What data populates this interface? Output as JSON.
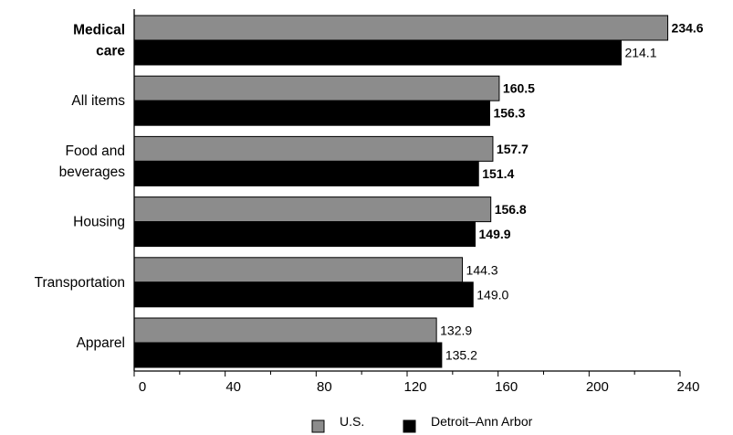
{
  "chart_data": {
    "type": "bar",
    "orientation": "horizontal",
    "title": "",
    "xlabel": "",
    "ylabel": "",
    "categories": [
      {
        "lines": [
          "Medical",
          "care"
        ],
        "bold": true
      },
      {
        "lines": [
          "All items"
        ],
        "bold": false
      },
      {
        "lines": [
          "Food and",
          "beverages"
        ],
        "bold": false
      },
      {
        "lines": [
          "Housing"
        ],
        "bold": false
      },
      {
        "lines": [
          "Transportation"
        ],
        "bold": false
      },
      {
        "lines": [
          "Apparel"
        ],
        "bold": false
      }
    ],
    "series": [
      {
        "name": "U.S.",
        "color": "#8c8c8c",
        "values": [
          234.6,
          160.5,
          157.7,
          156.8,
          144.3,
          132.9
        ],
        "labels": [
          "234.6",
          "160.5",
          "157.7",
          "156.8",
          "144.3",
          "132.9"
        ],
        "label_bold": [
          true,
          true,
          true,
          true,
          false,
          false
        ]
      },
      {
        "name": "Detroit–Ann Arbor",
        "color": "#000000",
        "values": [
          214.1,
          156.3,
          151.4,
          149.9,
          149.0,
          135.2
        ],
        "labels": [
          "214.1",
          "156.3",
          "151.4",
          "149.9",
          "149.0",
          "135.2"
        ],
        "label_bold": [
          false,
          true,
          true,
          true,
          false,
          false
        ]
      }
    ],
    "xlim": [
      0,
      240
    ],
    "xticks": [
      0,
      40,
      80,
      120,
      160,
      200,
      240
    ],
    "minor_step": 20,
    "grid": false,
    "legend_position": "bottom-center"
  }
}
